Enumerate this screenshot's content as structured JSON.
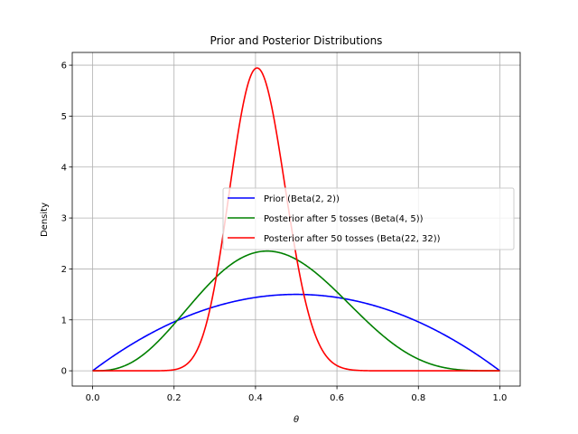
{
  "chart_data": {
    "type": "line",
    "title": "Prior and Posterior Distributions",
    "xlabel": "θ",
    "ylabel": "Density",
    "xlim": [
      -0.05,
      1.05
    ],
    "ylim": [
      -0.3,
      6.25
    ],
    "xticks": [
      0.0,
      0.2,
      0.4,
      0.6,
      0.8,
      1.0
    ],
    "xtick_labels": [
      "0.0",
      "0.2",
      "0.4",
      "0.6",
      "0.8",
      "1.0"
    ],
    "yticks": [
      0,
      1,
      2,
      3,
      4,
      5,
      6
    ],
    "ytick_labels": [
      "0",
      "1",
      "2",
      "3",
      "4",
      "5",
      "6"
    ],
    "grid": true,
    "legend_position": "center-right",
    "series": [
      {
        "name": "Prior (Beta(2, 2))",
        "color": "#0000ff",
        "distribution": {
          "family": "beta",
          "alpha": 2,
          "beta": 2
        },
        "peak": {
          "x": 0.5,
          "y": 1.5
        }
      },
      {
        "name": "Posterior after 5 tosses (Beta(4, 5))",
        "color": "#008000",
        "distribution": {
          "family": "beta",
          "alpha": 4,
          "beta": 5
        },
        "peak": {
          "x": 0.43,
          "y": 2.34
        }
      },
      {
        "name": "Posterior after 50 tosses (Beta(22, 32))",
        "color": "#ff0000",
        "distribution": {
          "family": "beta",
          "alpha": 22,
          "beta": 32
        },
        "peak": {
          "x": 0.4,
          "y": 5.94
        }
      }
    ]
  }
}
